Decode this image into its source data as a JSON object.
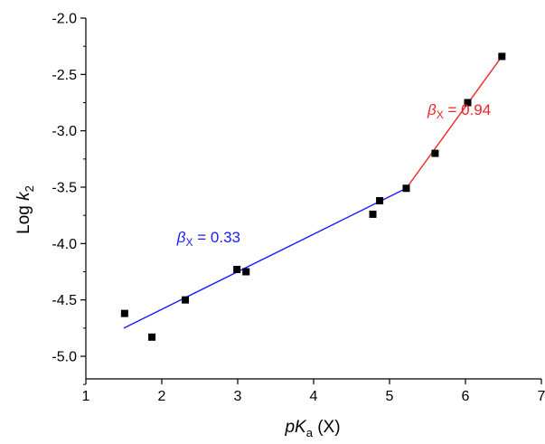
{
  "chart_data": {
    "type": "scatter",
    "xlabel": "pK_a (X)",
    "xlabel_parts": {
      "p": "p",
      "K": "K",
      "sub": "a",
      "rest": " (X)"
    },
    "ylabel": "Log k_2",
    "ylabel_parts": {
      "main": "Log ",
      "k": "k",
      "sub": "2"
    },
    "xlim": [
      1,
      7
    ],
    "ylim": [
      -5.25,
      -2.0
    ],
    "x_ticks": [
      1,
      2,
      3,
      4,
      5,
      6,
      7
    ],
    "x_tick_labels": [
      "1",
      "2",
      "3",
      "4",
      "5",
      "6",
      "7"
    ],
    "y_ticks": [
      -2.0,
      -2.5,
      -3.0,
      -3.5,
      -4.0,
      -4.5,
      -5.0
    ],
    "y_tick_labels": [
      "-2.0",
      "-2.5",
      "-3.0",
      "-3.5",
      "-4.0",
      "-4.5",
      "-5.0"
    ],
    "grid": false,
    "points": [
      {
        "x": 1.51,
        "y": -4.62
      },
      {
        "x": 1.87,
        "y": -4.83
      },
      {
        "x": 2.31,
        "y": -4.5
      },
      {
        "x": 2.99,
        "y": -4.23
      },
      {
        "x": 3.11,
        "y": -4.25
      },
      {
        "x": 4.78,
        "y": -3.74
      },
      {
        "x": 4.87,
        "y": -3.62
      },
      {
        "x": 5.22,
        "y": -3.51
      },
      {
        "x": 5.6,
        "y": -3.2
      },
      {
        "x": 6.03,
        "y": -2.75
      },
      {
        "x": 6.48,
        "y": -2.34
      }
    ],
    "fit_lines": [
      {
        "color": "#1a1aff",
        "x": [
          1.5,
          5.22
        ],
        "y": [
          -4.75,
          -3.51
        ]
      },
      {
        "color": "#ee2222",
        "x": [
          5.22,
          6.48
        ],
        "y": [
          -3.51,
          -2.34
        ]
      }
    ],
    "annotations": [
      {
        "beta": "β",
        "sub": "X",
        "value": " = 0.33",
        "color": "#1a1aff",
        "x": 2.2,
        "y": -3.99
      },
      {
        "beta": "β",
        "sub": "X",
        "value": " = 0.94",
        "color": "#ee2222",
        "x": 5.5,
        "y": -2.86
      }
    ]
  }
}
